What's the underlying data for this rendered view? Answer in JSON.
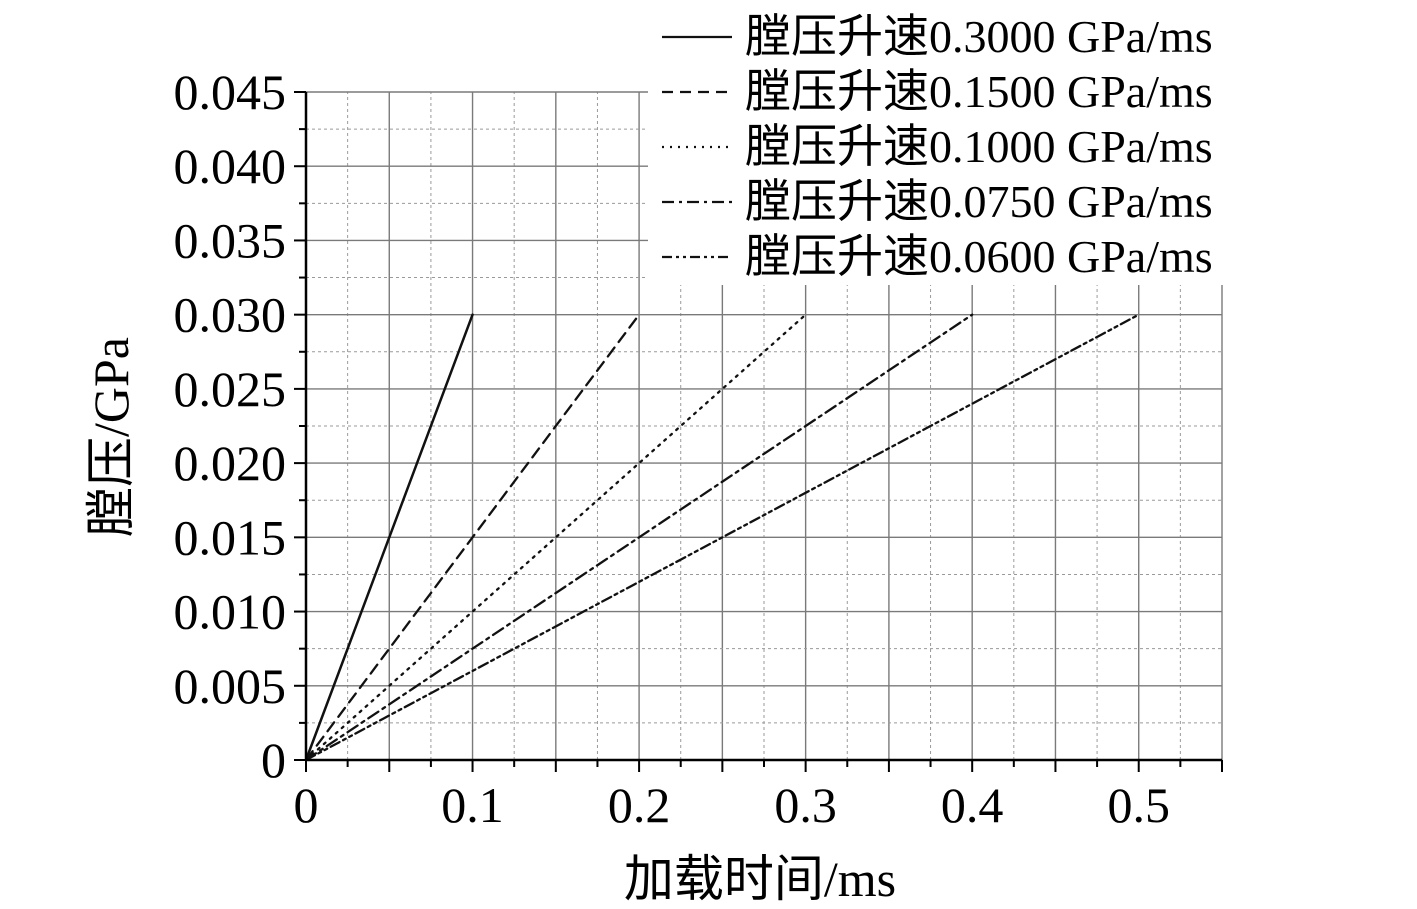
{
  "chart_data": {
    "type": "line",
    "xlabel": "加载时间/ms",
    "ylabel": "膛压/GPa",
    "xlim": [
      0,
      0.55
    ],
    "ylim": [
      0,
      0.045
    ],
    "x_ticks": [
      "0",
      "0.1",
      "0.2",
      "0.3",
      "0.4",
      "0.5"
    ],
    "y_ticks": [
      "0",
      "0.005",
      "0.010",
      "0.015",
      "0.020",
      "0.025",
      "0.030",
      "0.035",
      "0.040",
      "0.045"
    ],
    "grid": true,
    "legend_position": "top-right",
    "series": [
      {
        "name": "膛压升速0.3000 GPa/ms",
        "style": "solid",
        "x": [
          0,
          0.1
        ],
        "y": [
          0,
          0.03
        ]
      },
      {
        "name": "膛压升速0.1500 GPa/ms",
        "style": "dashed",
        "x": [
          0,
          0.2
        ],
        "y": [
          0,
          0.03
        ]
      },
      {
        "name": "膛压升速0.1000 GPa/ms",
        "style": "dotted",
        "x": [
          0,
          0.3
        ],
        "y": [
          0,
          0.03
        ]
      },
      {
        "name": "膛压升速0.0750 GPa/ms",
        "style": "dash-dot",
        "x": [
          0,
          0.4
        ],
        "y": [
          0,
          0.03
        ]
      },
      {
        "name": "膛压升速0.0600 GPa/ms",
        "style": "dash-dot-dot",
        "x": [
          0,
          0.5
        ],
        "y": [
          0,
          0.03
        ]
      }
    ],
    "colors": {
      "axis": "#000000",
      "major_grid": "#7a7a7a",
      "minor_grid": "#9a9a9a",
      "line": "#111111"
    }
  }
}
